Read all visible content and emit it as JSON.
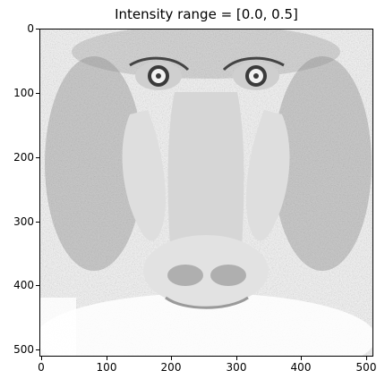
{
  "title": "Intensity range = [0.0, 0.5]",
  "image": {
    "subject": "mandrill face, light grey contrast-stretched photograph",
    "colors": {
      "background": "#ffffff",
      "fur_dark": "#555555",
      "fur_mid": "#8a8a8a",
      "cheek": "#dcdcdc",
      "snout": "#e6e6e6",
      "eye": "#3a3a3a"
    }
  },
  "axes": {
    "x_ticks": [
      "0",
      "100",
      "200",
      "300",
      "400",
      "500"
    ],
    "y_ticks": [
      "0",
      "100",
      "200",
      "300",
      "400",
      "500"
    ],
    "x_range": [
      0,
      512
    ],
    "y_range": [
      512,
      0
    ]
  }
}
